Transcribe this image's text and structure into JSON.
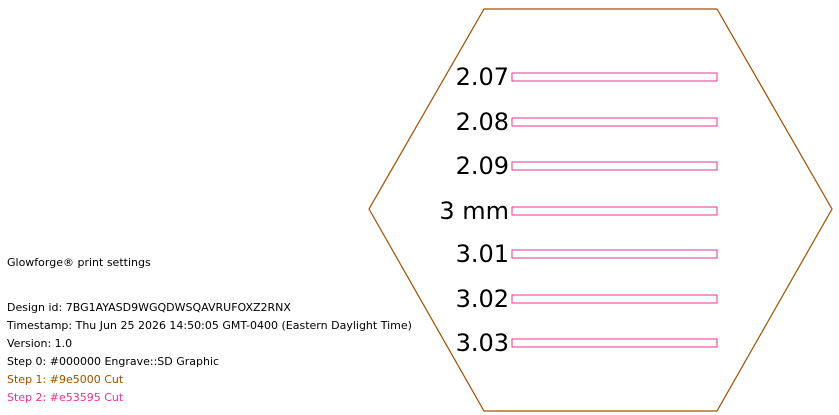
{
  "settings": {
    "lines": [
      "Glowforge® print settings",
      "Design id: 7BG1AYASD9WGQDWSQAVRUFOXZ2RNX",
      "Timestamp: Thu Jun 25 2026 14:50:05 GMT-0400 (Eastern Daylight Time)",
      "Version: 1.0",
      "Step 0: #000000 Engrave::SD Graphic",
      "Step 1: #9e5000 Cut",
      "Step 2: #e53595 Cut"
    ]
  },
  "labels": [
    "2.07",
    "2.08",
    "2.09",
    "3 mm",
    "3.01",
    "3.02",
    "3.03"
  ]
}
